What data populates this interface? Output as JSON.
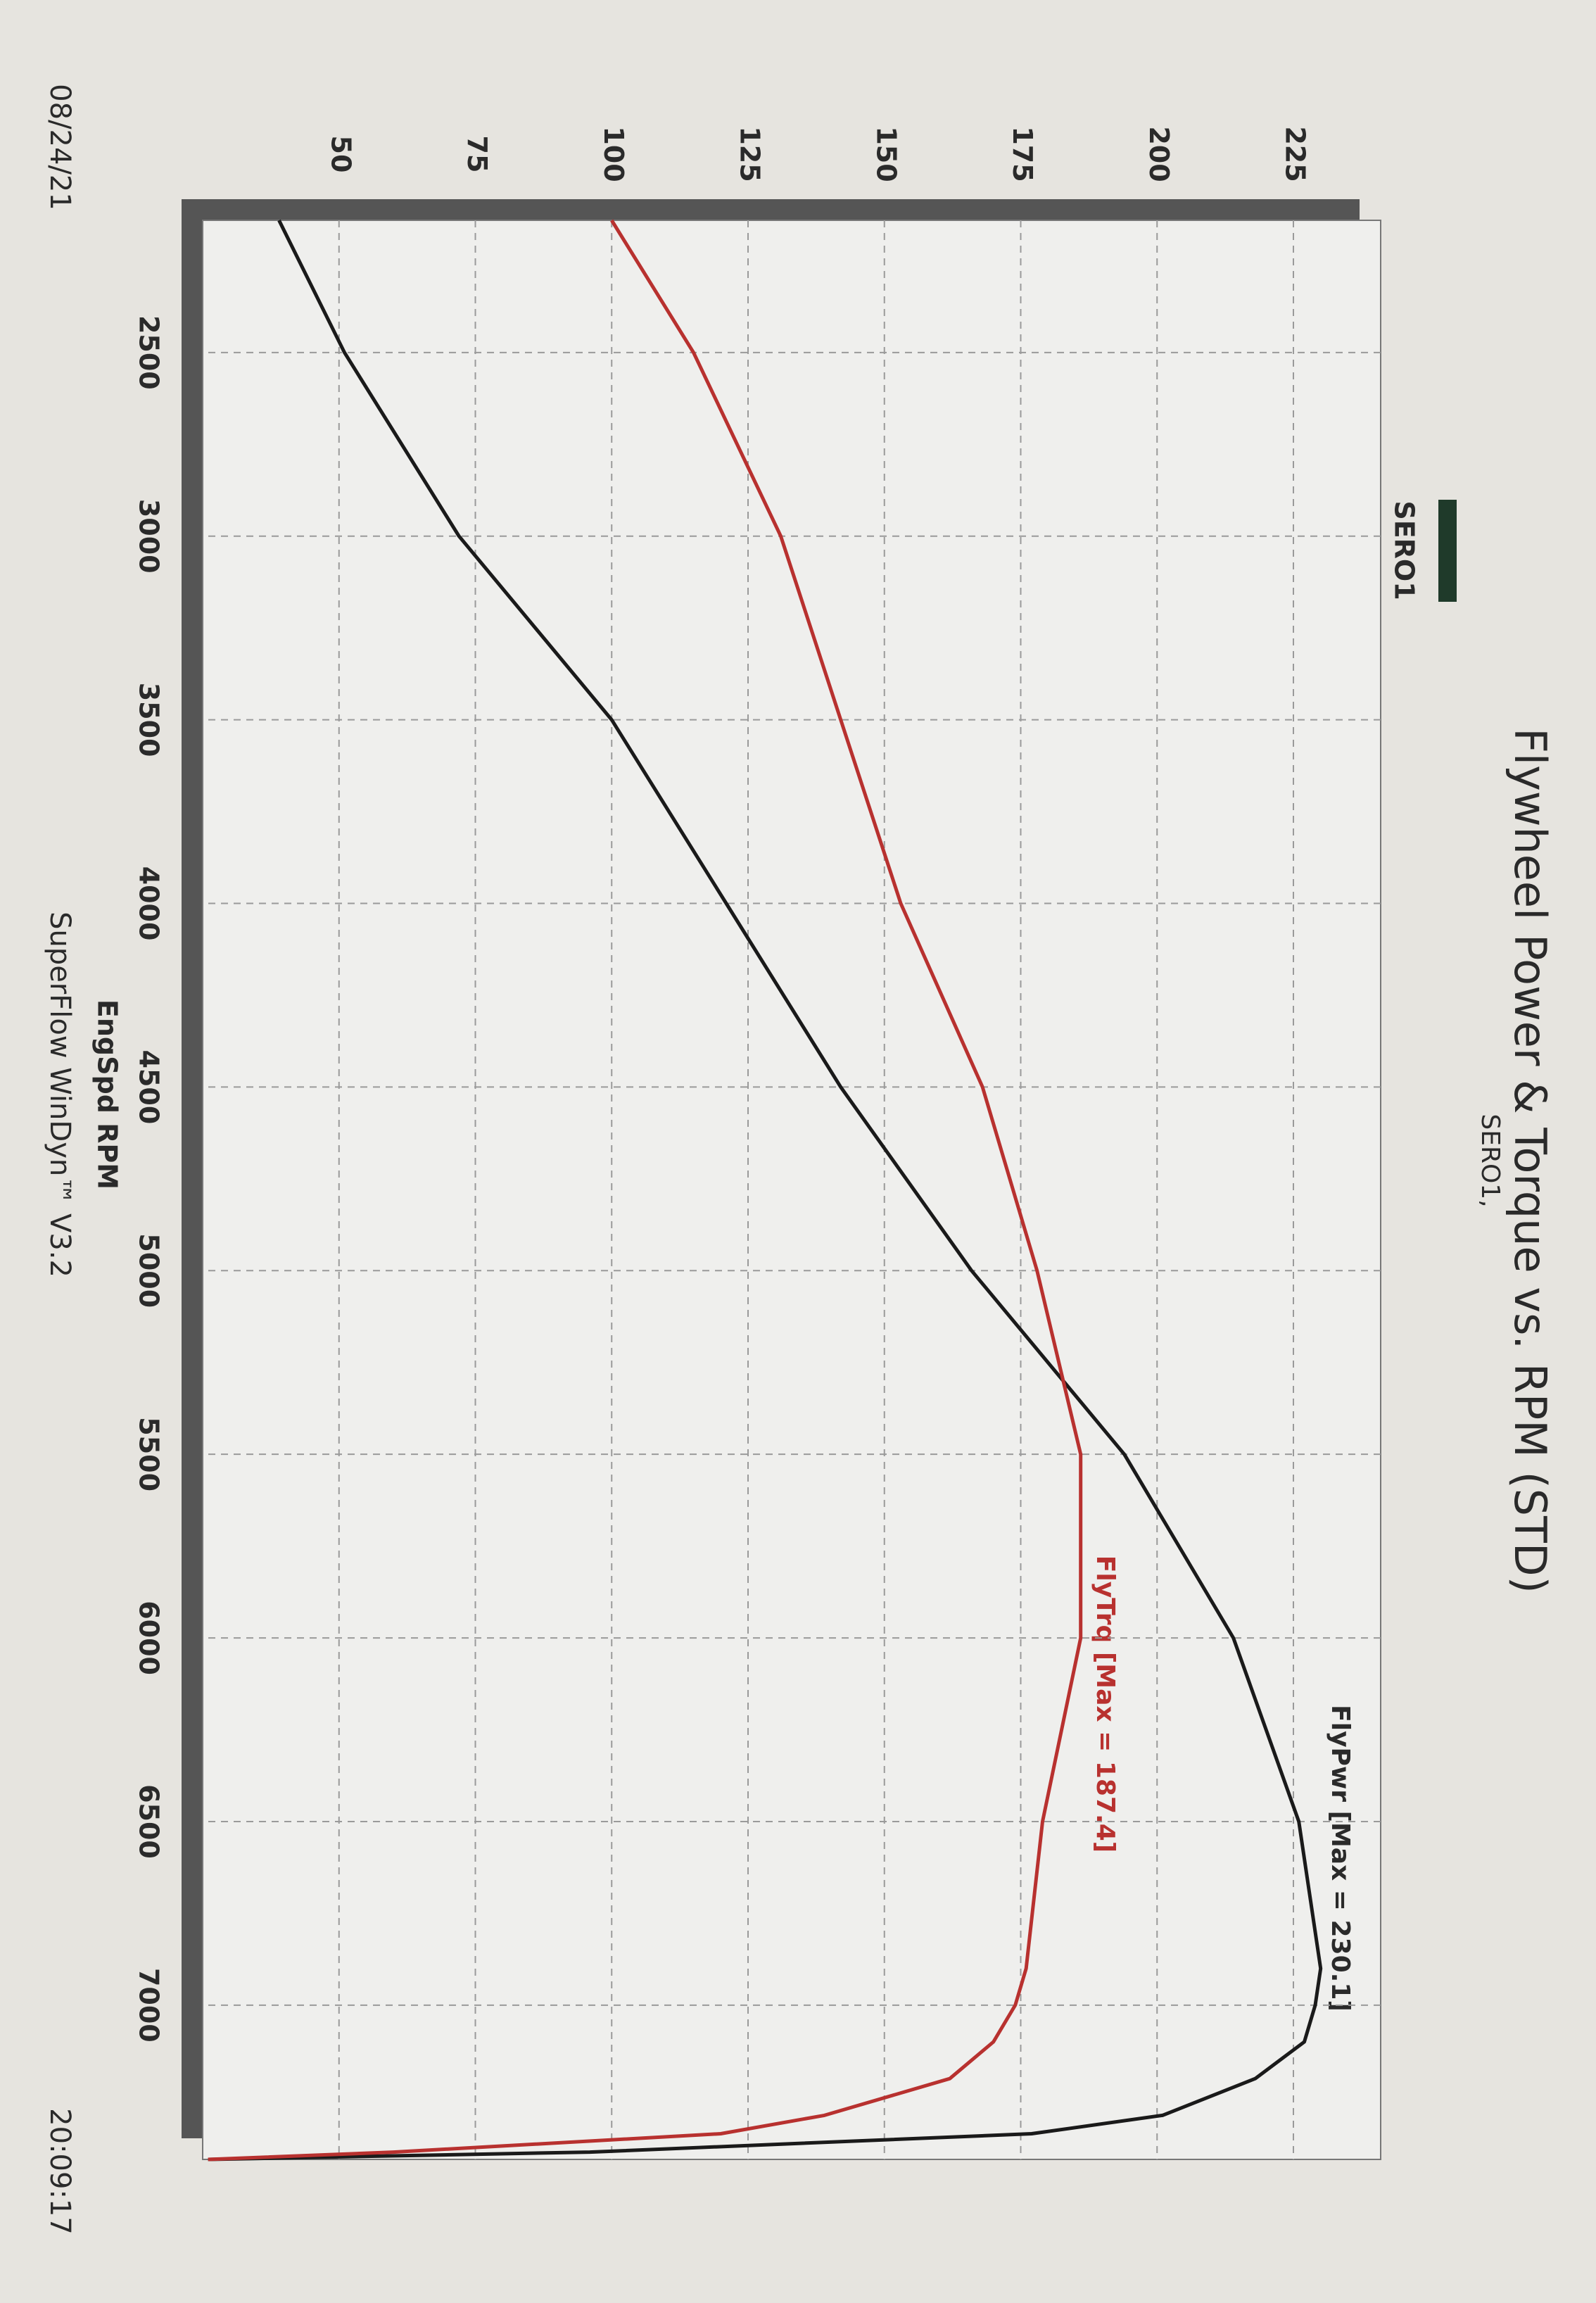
{
  "chart_data": {
    "type": "line",
    "title": "Flywheel Power & Torque vs. RPM (STD)",
    "subtitle": "SERO1,",
    "legend_label": "SERO1",
    "legend_color": "#1f3a2a",
    "x_label": "EngSpd RPM",
    "footer": "SuperFlow WinDyn™ V3.2",
    "date": "08/24/21",
    "time": "20:09:17",
    "annotations": [
      "FlyPwr [Max = 230.1]",
      "FlyTrq [Max = 187.4]"
    ],
    "x": [
      2140,
      2500,
      3000,
      3500,
      4000,
      4500,
      5000,
      5500,
      6000,
      6500,
      6900,
      7000,
      7100,
      7200,
      7300,
      7350,
      7400,
      7420
    ],
    "series": [
      {
        "name": "FlyPwr",
        "color": "#1a1a1a",
        "values": [
          39,
          51,
          72,
          100,
          121,
          142,
          166,
          194,
          214,
          226,
          230,
          229,
          227,
          218,
          201,
          177,
          96,
          26
        ]
      },
      {
        "name": "FlyTrq",
        "color": "#b8312f",
        "values": [
          100,
          115,
          131,
          142,
          153,
          168,
          178,
          186,
          186,
          179,
          176,
          174,
          170,
          162,
          139,
          120,
          60,
          26
        ]
      }
    ],
    "xlim": [
      2140,
      7420
    ],
    "ylim": [
      25,
      241
    ],
    "xticks": [
      2500,
      3000,
      3500,
      4000,
      4500,
      5000,
      5500,
      6000,
      6500,
      7000
    ],
    "yticks": [
      50,
      75,
      100,
      125,
      150,
      175,
      200,
      225
    ],
    "grid": true
  }
}
